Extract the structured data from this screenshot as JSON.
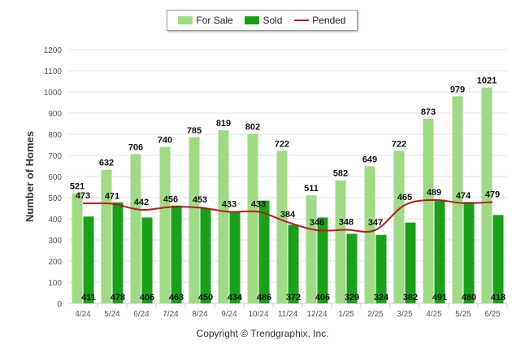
{
  "legend": {
    "for_sale_label": "For Sale",
    "sold_label": "Sold",
    "pended_label": "Pended"
  },
  "copyright": "Copyright © Trendgraphix, Inc.",
  "colors": {
    "for_sale": "#9edb84",
    "sold": "#1aa11a",
    "pended": "#b51d1d",
    "grid": "#e4e4e4",
    "axis_text": "#555555"
  },
  "chart_data": {
    "type": "bar",
    "categories": [
      "4/24",
      "5/24",
      "6/24",
      "7/24",
      "8/24",
      "9/24",
      "10/24",
      "11/24",
      "12/24",
      "1/25",
      "2/25",
      "3/25",
      "4/25",
      "5/25",
      "6/25"
    ],
    "series": [
      {
        "name": "For Sale",
        "type": "bar",
        "values": [
          521,
          632,
          706,
          740,
          785,
          819,
          802,
          722,
          511,
          582,
          649,
          722,
          873,
          979,
          1021
        ]
      },
      {
        "name": "Sold",
        "type": "bar",
        "values": [
          411,
          478,
          406,
          463,
          450,
          434,
          486,
          372,
          406,
          329,
          324,
          382,
          491,
          480,
          418
        ]
      },
      {
        "name": "Pended",
        "type": "line",
        "values": [
          473,
          471,
          442,
          456,
          453,
          433,
          433,
          384,
          346,
          348,
          347,
          465,
          489,
          474,
          479
        ]
      }
    ],
    "ylabel": "Number of Homes",
    "xlabel": "",
    "ylim": [
      0,
      1200
    ],
    "yticks": [
      0,
      100,
      200,
      300,
      400,
      500,
      600,
      700,
      800,
      900,
      1000,
      1100,
      1200
    ],
    "grid": true,
    "legend_position": "top-center"
  }
}
